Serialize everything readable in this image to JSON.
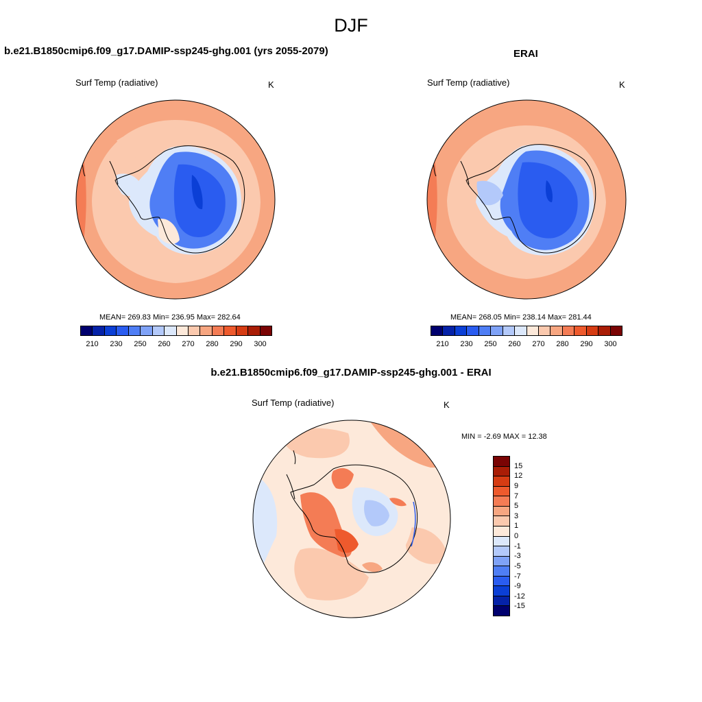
{
  "figure": {
    "title": "DJF"
  },
  "panels": {
    "model": {
      "title": "b.e21.B1850cmip6.f09_g17.DAMIP-ssp245-ghg.001 (yrs 2055-2079)",
      "variable": "Surf Temp (radiative)",
      "units": "K",
      "stats_text": "MEAN= 269.83  Min= 236.95  Max= 282.64",
      "mean": 269.83,
      "min": 236.95,
      "max": 282.64
    },
    "obs": {
      "title": "ERAI",
      "variable": "Surf Temp (radiative)",
      "units": "K",
      "stats_text": "MEAN= 268.05  Min= 238.14  Max= 281.44",
      "mean": 268.05,
      "min": 238.14,
      "max": 281.44
    },
    "diff": {
      "title": "b.e21.B1850cmip6.f09_g17.DAMIP-ssp245-ghg.001 - ERAI",
      "variable": "Surf Temp (radiative)",
      "units": "K",
      "stats_text": "MIN =  -2.69 MAX =  12.38",
      "min": -2.69,
      "max": 12.38
    }
  },
  "colorbars": {
    "absolute": {
      "tick_labels": [
        "210",
        "230",
        "250",
        "260",
        "270",
        "280",
        "290",
        "300"
      ],
      "colors": [
        "#00006e",
        "#0522a8",
        "#0b3fd6",
        "#2a5cf0",
        "#4f7ef5",
        "#7fa2f7",
        "#b3c9fa",
        "#dce8fb",
        "#fde9da",
        "#fbc9ae",
        "#f7a681",
        "#f47c55",
        "#ee5a2d",
        "#d63c13",
        "#a91d06",
        "#7a0404"
      ]
    },
    "difference": {
      "tick_labels": [
        "15",
        "12",
        "9",
        "7",
        "5",
        "3",
        "1",
        "0",
        "-1",
        "-3",
        "-5",
        "-7",
        "-9",
        "-12",
        "-15"
      ],
      "colors": [
        "#7a0404",
        "#a91d06",
        "#d63c13",
        "#ee5a2d",
        "#f47c55",
        "#f7a681",
        "#fbc9ae",
        "#fde9da",
        "#dce8fb",
        "#b3c9fa",
        "#7fa2f7",
        "#4f7ef5",
        "#2a5cf0",
        "#0b3fd6",
        "#0522a8",
        "#00006e"
      ]
    }
  }
}
